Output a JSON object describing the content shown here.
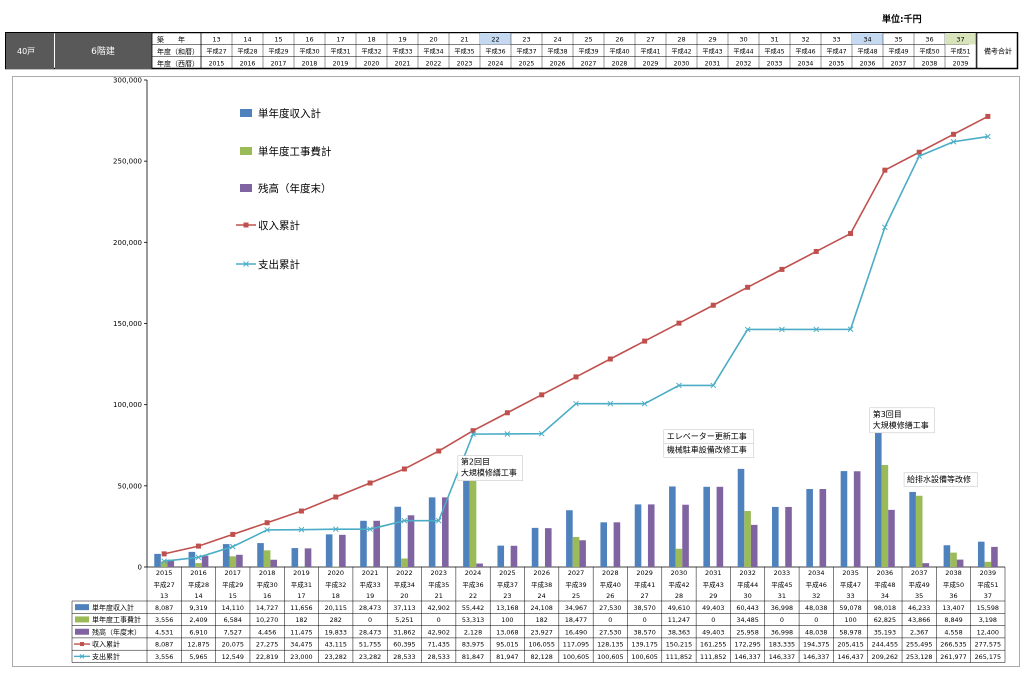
{
  "unit_label": "単位:千円",
  "header": {
    "units_label": "40戸",
    "floors_label": "6階建",
    "row_labels": [
      "築　　年",
      "年度（和暦）",
      "年度（西暦）"
    ],
    "remarks_label": "備考合計",
    "highlight_colors": {
      "22": "#c5d9f1",
      "34": "#c5d9f1",
      "37": "#d8e4bc"
    }
  },
  "chart_data": {
    "type": "bar+line",
    "years_built": [
      "13",
      "14",
      "15",
      "16",
      "17",
      "18",
      "19",
      "20",
      "21",
      "22",
      "23",
      "24",
      "25",
      "26",
      "27",
      "28",
      "29",
      "30",
      "31",
      "32",
      "33",
      "34",
      "35",
      "36",
      "37"
    ],
    "fiscal_wareki": [
      "平成27",
      "平成28",
      "平成29",
      "平成30",
      "平成31",
      "平成32",
      "平成33",
      "平成34",
      "平成35",
      "平成36",
      "平成37",
      "平成38",
      "平成39",
      "平成40",
      "平成41",
      "平成42",
      "平成43",
      "平成44",
      "平成45",
      "平成46",
      "平成47",
      "平成48",
      "平成49",
      "平成50",
      "平成51"
    ],
    "fiscal_seireki": [
      "2015",
      "2016",
      "2017",
      "2018",
      "2019",
      "2020",
      "2021",
      "2022",
      "2023",
      "2024",
      "2025",
      "2026",
      "2027",
      "2028",
      "2029",
      "2030",
      "2031",
      "2032",
      "2033",
      "2034",
      "2035",
      "2036",
      "2037",
      "2038",
      "2039"
    ],
    "y_ticks": [
      "0",
      "50,000",
      "100,000",
      "150,000",
      "200,000",
      "250,000",
      "300,000"
    ],
    "ylim": [
      0,
      300000
    ],
    "series": [
      {
        "name": "単年度収入計",
        "type": "bar",
        "color": "#4f81bd",
        "values": [
          8087,
          9319,
          14110,
          14727,
          11656,
          20115,
          28473,
          37113,
          42902,
          55442,
          13168,
          24108,
          34967,
          27530,
          38570,
          49610,
          49403,
          60443,
          36998,
          48038,
          59078,
          98018,
          46233,
          13407,
          15598
        ],
        "labels": [
          "8,087",
          "9,319",
          "14,110",
          "14,727",
          "11,656",
          "20,115",
          "28,473",
          "37,113",
          "42,902",
          "55,442",
          "13,168",
          "24,108",
          "34,967",
          "27,530",
          "38,570",
          "49,610",
          "49,403",
          "60,443",
          "36,998",
          "48,038",
          "59,078",
          "98,018",
          "46,233",
          "13,407",
          "15,598"
        ]
      },
      {
        "name": "単年度工事費計",
        "type": "bar",
        "color": "#9bbb59",
        "values": [
          3556,
          2409,
          6584,
          10270,
          182,
          282,
          0,
          5251,
          0,
          53313,
          100,
          182,
          18477,
          0,
          0,
          11247,
          0,
          34485,
          0,
          0,
          100,
          62825,
          43866,
          8849,
          3198
        ],
        "labels": [
          "3,556",
          "2,409",
          "6,584",
          "10,270",
          "182",
          "282",
          "0",
          "5,251",
          "0",
          "53,313",
          "100",
          "182",
          "18,477",
          "0",
          "0",
          "11,247",
          "0",
          "34,485",
          "0",
          "0",
          "100",
          "62,825",
          "43,866",
          "8,849",
          "3,198"
        ]
      },
      {
        "name": "残高（年度末）",
        "type": "bar",
        "color": "#8064a2",
        "values": [
          4531,
          6910,
          7527,
          4456,
          11475,
          19833,
          28473,
          31862,
          42902,
          2128,
          13068,
          23927,
          16490,
          27530,
          38570,
          38363,
          49403,
          25958,
          36998,
          48038,
          58978,
          35193,
          2367,
          4558,
          12400
        ],
        "labels": [
          "4,531",
          "6,910",
          "7,527",
          "4,456",
          "11,475",
          "19,833",
          "28,473",
          "31,862",
          "42,902",
          "2,128",
          "13,068",
          "23,927",
          "16,490",
          "27,530",
          "38,570",
          "38,363",
          "49,403",
          "25,958",
          "36,998",
          "48,038",
          "58,978",
          "35,193",
          "2,367",
          "4,558",
          "12,400"
        ]
      },
      {
        "name": "収入累計",
        "type": "line",
        "color": "#c0504d",
        "marker": "square",
        "values": [
          8087,
          12875,
          20075,
          27275,
          34475,
          43115,
          51755,
          60395,
          71435,
          83975,
          95015,
          106055,
          117095,
          128135,
          139175,
          150215,
          161255,
          172295,
          183335,
          194375,
          205415,
          244455,
          255495,
          266535,
          277575
        ],
        "labels": [
          "8,087",
          "12,875",
          "20,075",
          "27,275",
          "34,475",
          "43,115",
          "51,755",
          "60,395",
          "71,435",
          "83,975",
          "95,015",
          "106,055",
          "117,095",
          "128,135",
          "139,175",
          "150,215",
          "161,255",
          "172,295",
          "183,335",
          "194,375",
          "205,415",
          "244,455",
          "255,495",
          "266,535",
          "277,575"
        ]
      },
      {
        "name": "支出累計",
        "type": "line",
        "color": "#4bacc6",
        "marker": "x",
        "values": [
          3556,
          5965,
          12549,
          22819,
          23000,
          23282,
          23282,
          28533,
          28533,
          81847,
          81947,
          82128,
          100605,
          100605,
          100605,
          111852,
          111852,
          146337,
          146337,
          146337,
          146437,
          209262,
          253128,
          261977,
          265175
        ],
        "labels": [
          "3,556",
          "5,965",
          "12,549",
          "22,819",
          "23,000",
          "23,282",
          "23,282",
          "28,533",
          "28,533",
          "81,847",
          "81,947",
          "82,128",
          "100,605",
          "100,605",
          "100,605",
          "111,852",
          "111,852",
          "146,337",
          "146,337",
          "146,337",
          "146,437",
          "209,262",
          "253,128",
          "261,977",
          "265,175"
        ]
      }
    ],
    "legend_position": "top-left",
    "grid": false,
    "annotations": [
      {
        "index": 9,
        "value": 63000,
        "lines": [
          "第2回目",
          "大規模修繕工事"
        ]
      },
      {
        "index": 15,
        "value": 79000,
        "lines": [
          "エレベーター更新工事"
        ]
      },
      {
        "index": 15,
        "value": 70500,
        "lines": [
          "機械駐車設備改修工事"
        ]
      },
      {
        "index": 21,
        "value": 92500,
        "lines": [
          "第3回目",
          "大規模修繕工事"
        ]
      },
      {
        "index": 22,
        "value": 52500,
        "lines": [
          "給排水設備等改修"
        ]
      }
    ]
  }
}
